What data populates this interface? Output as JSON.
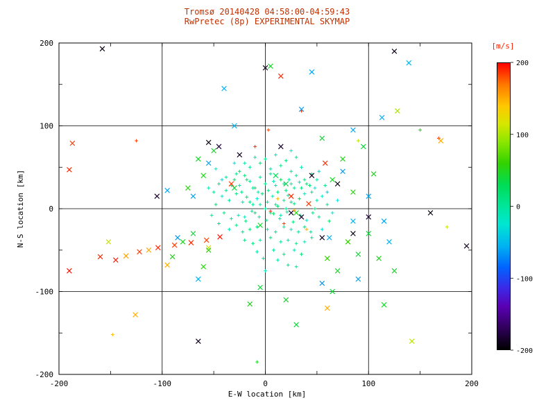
{
  "colors": {
    "title": "#c03000",
    "colorbar_label": "#ff2200",
    "axis": "#000000",
    "background": "#ffffff"
  },
  "chart_data": {
    "type": "scatter",
    "title": "Tromsø 20140428 04:58:00-04:59:43",
    "subtitle": "RwPretec (8p) EXPERIMENTAL SKYMAP",
    "xlabel": "E-W location [km]",
    "ylabel": "N-S location [km]",
    "xlim": [
      -200,
      200
    ],
    "ylim": [
      -200,
      200
    ],
    "x_ticks": [
      -200,
      -100,
      0,
      100,
      200
    ],
    "y_ticks": [
      -200,
      -100,
      0,
      100,
      200
    ],
    "grid_positions": [
      -100,
      0,
      100
    ],
    "grid": "on",
    "colorbar": {
      "label": "[m/s]",
      "ticks": [
        200,
        100,
        0,
        -100,
        -200
      ],
      "min": -200,
      "max": 200,
      "stops": [
        [
          -200,
          "#000000"
        ],
        [
          -170,
          "#30005a"
        ],
        [
          -140,
          "#5a00b4"
        ],
        [
          -115,
          "#3c28e6"
        ],
        [
          -85,
          "#0064ff"
        ],
        [
          -55,
          "#00b4f0"
        ],
        [
          -25,
          "#00e6d2"
        ],
        [
          0,
          "#00e69b"
        ],
        [
          30,
          "#00dc55"
        ],
        [
          60,
          "#32d200"
        ],
        [
          90,
          "#8ce600"
        ],
        [
          115,
          "#d7e600"
        ],
        [
          140,
          "#ffc800"
        ],
        [
          170,
          "#ff7800"
        ],
        [
          200,
          "#ff0000"
        ]
      ]
    },
    "points_format": "[x_km, y_km, velocity_ms, marker] marker: 0=small plus (default), 1=x",
    "points": [
      [
        -45,
        30,
        10
      ],
      [
        -38,
        22,
        5
      ],
      [
        -30,
        35,
        20
      ],
      [
        -25,
        28,
        -10
      ],
      [
        -20,
        40,
        15
      ],
      [
        -15,
        33,
        0
      ],
      [
        -10,
        25,
        25
      ],
      [
        -5,
        38,
        -5
      ],
      [
        0,
        30,
        10
      ],
      [
        5,
        42,
        5
      ],
      [
        10,
        28,
        -15
      ],
      [
        15,
        35,
        30
      ],
      [
        20,
        22,
        10
      ],
      [
        25,
        30,
        -5
      ],
      [
        30,
        40,
        0
      ],
      [
        35,
        25,
        15
      ],
      [
        -42,
        15,
        -20
      ],
      [
        -35,
        10,
        5
      ],
      [
        -28,
        18,
        10
      ],
      [
        -22,
        8,
        -10
      ],
      [
        -18,
        14,
        20
      ],
      [
        -12,
        5,
        0
      ],
      [
        -8,
        12,
        -25
      ],
      [
        -3,
        18,
        15
      ],
      [
        2,
        8,
        5
      ],
      [
        7,
        15,
        -10
      ],
      [
        12,
        3,
        20
      ],
      [
        18,
        10,
        0
      ],
      [
        22,
        16,
        -5
      ],
      [
        28,
        6,
        10
      ],
      [
        33,
        12,
        25
      ],
      [
        38,
        18,
        -15
      ],
      [
        -40,
        -5,
        10
      ],
      [
        -33,
        -12,
        0
      ],
      [
        -26,
        -8,
        -20
      ],
      [
        -19,
        -15,
        15
      ],
      [
        -13,
        -3,
        5
      ],
      [
        -6,
        -10,
        -5
      ],
      [
        1,
        -14,
        10
      ],
      [
        8,
        -6,
        20
      ],
      [
        14,
        -12,
        -10
      ],
      [
        21,
        -4,
        0
      ],
      [
        27,
        -16,
        15
      ],
      [
        34,
        -8,
        5
      ],
      [
        40,
        -14,
        -20
      ],
      [
        46,
        -5,
        10
      ],
      [
        -15,
        50,
        5
      ],
      [
        -5,
        55,
        15
      ],
      [
        5,
        48,
        -5
      ],
      [
        15,
        52,
        10
      ],
      [
        25,
        45,
        0
      ],
      [
        -25,
        45,
        20
      ],
      [
        35,
        50,
        -10
      ],
      [
        45,
        42,
        5
      ],
      [
        0,
        60,
        10
      ],
      [
        10,
        65,
        -15
      ],
      [
        -10,
        62,
        0
      ],
      [
        20,
        58,
        15
      ],
      [
        30,
        62,
        5
      ],
      [
        -20,
        55,
        -5
      ],
      [
        40,
        30,
        20
      ],
      [
        45,
        20,
        0
      ],
      [
        50,
        10,
        -10
      ],
      [
        48,
        0,
        15
      ],
      [
        52,
        -10,
        5
      ],
      [
        55,
        15,
        -20
      ],
      [
        58,
        28,
        10
      ],
      [
        60,
        5,
        0
      ],
      [
        62,
        -15,
        20
      ],
      [
        50,
        35,
        -5
      ],
      [
        -50,
        20,
        5
      ],
      [
        -48,
        5,
        15
      ],
      [
        -52,
        -8,
        0
      ],
      [
        -55,
        25,
        -10
      ],
      [
        -45,
        -18,
        10
      ],
      [
        0,
        0,
        5
      ],
      [
        -5,
        5,
        -5
      ],
      [
        5,
        -5,
        15
      ],
      [
        10,
        5,
        0
      ],
      [
        -10,
        -5,
        20
      ],
      [
        15,
        -8,
        -10
      ],
      [
        -15,
        8,
        10
      ],
      [
        20,
        0,
        5
      ],
      [
        -20,
        -10,
        -15
      ],
      [
        25,
        8,
        0
      ],
      [
        3,
        22,
        10
      ],
      [
        -7,
        20,
        -5
      ],
      [
        12,
        20,
        15
      ],
      [
        -12,
        25,
        5
      ],
      [
        8,
        33,
        -10
      ],
      [
        18,
        30,
        0
      ],
      [
        -18,
        35,
        20
      ],
      [
        23,
        35,
        -5
      ],
      [
        -23,
        20,
        10
      ],
      [
        28,
        25,
        5
      ],
      [
        33,
        32,
        -15
      ],
      [
        -33,
        28,
        0
      ],
      [
        38,
        35,
        10
      ],
      [
        -38,
        38,
        -5
      ],
      [
        43,
        28,
        15
      ],
      [
        -28,
        42,
        5
      ],
      [
        2,
        -25,
        -10
      ],
      [
        -8,
        -22,
        10
      ],
      [
        10,
        -28,
        0
      ],
      [
        -15,
        -25,
        15
      ],
      [
        18,
        -22,
        -5
      ],
      [
        -22,
        -28,
        5
      ],
      [
        25,
        -25,
        -20
      ],
      [
        -28,
        -20,
        10
      ],
      [
        32,
        -28,
        0
      ],
      [
        38,
        -22,
        15
      ],
      [
        -35,
        -25,
        -10
      ],
      [
        44,
        -28,
        5
      ],
      [
        5,
        -35,
        10
      ],
      [
        -5,
        -38,
        -5
      ],
      [
        15,
        -40,
        0
      ],
      [
        -12,
        -42,
        15
      ],
      [
        22,
        -38,
        -10
      ],
      [
        30,
        -42,
        5
      ],
      [
        -20,
        -38,
        10
      ],
      [
        38,
        -40,
        -15
      ],
      [
        45,
        -35,
        0
      ],
      [
        8,
        -50,
        5
      ],
      [
        -8,
        -52,
        -5
      ],
      [
        18,
        -55,
        10
      ],
      [
        28,
        -50,
        -10
      ],
      [
        -2,
        -60,
        0
      ],
      [
        35,
        -55,
        15
      ],
      [
        12,
        -62,
        -5
      ],
      [
        22,
        -68,
        5
      ],
      [
        0,
        -75,
        -10
      ],
      [
        30,
        -70,
        0
      ],
      [
        48,
        25,
        -25
      ],
      [
        55,
        -25,
        -30
      ],
      [
        -42,
        35,
        -35
      ],
      [
        60,
        20,
        -40
      ],
      [
        -30,
        55,
        -30
      ],
      [
        25,
        70,
        -25
      ],
      [
        -48,
        48,
        -20
      ],
      [
        52,
        45,
        -35
      ],
      [
        65,
        -5,
        -25
      ],
      [
        70,
        10,
        -30
      ],
      [
        -30,
        25,
        40,
        1
      ],
      [
        20,
        30,
        35,
        1
      ],
      [
        -5,
        -20,
        45,
        1
      ],
      [
        30,
        -5,
        50,
        1
      ],
      [
        10,
        40,
        30,
        1
      ],
      [
        35,
        -10,
        -185,
        1
      ],
      [
        25,
        -5,
        -190,
        1
      ],
      [
        45,
        40,
        -190,
        1
      ],
      [
        70,
        30,
        -195,
        1
      ],
      [
        15,
        75,
        -185,
        1
      ],
      [
        -25,
        65,
        -190,
        1
      ],
      [
        -55,
        80,
        -195,
        1
      ],
      [
        -45,
        75,
        -185,
        1
      ],
      [
        55,
        -35,
        -190,
        1
      ],
      [
        85,
        -30,
        -195,
        1
      ],
      [
        100,
        -10,
        -185,
        1
      ],
      [
        160,
        -5,
        -195,
        1
      ],
      [
        195,
        -45,
        -190,
        1
      ],
      [
        0,
        170,
        -190,
        1
      ],
      [
        125,
        190,
        -190,
        1
      ],
      [
        -158,
        193,
        -195,
        1
      ],
      [
        -65,
        -160,
        -190,
        1
      ],
      [
        -105,
        15,
        -185,
        1
      ],
      [
        -190,
        -75,
        195,
        1
      ],
      [
        -160,
        -58,
        190,
        1
      ],
      [
        -145,
        -62,
        195,
        1
      ],
      [
        -122,
        -52,
        185,
        1
      ],
      [
        -104,
        -47,
        190,
        1
      ],
      [
        -88,
        -44,
        185,
        1
      ],
      [
        -72,
        -41,
        190,
        1
      ],
      [
        -57,
        -38,
        185,
        1
      ],
      [
        -44,
        -34,
        195,
        1
      ],
      [
        -190,
        47,
        190,
        1
      ],
      [
        25,
        15,
        190,
        1
      ],
      [
        42,
        6,
        185,
        1
      ],
      [
        -10,
        75,
        190,
        0
      ],
      [
        15,
        160,
        190,
        1
      ],
      [
        168,
        85,
        190,
        0
      ],
      [
        -125,
        82,
        185,
        0
      ],
      [
        58,
        55,
        190,
        1
      ],
      [
        -33,
        30,
        185,
        1
      ],
      [
        5,
        -3,
        190,
        0
      ],
      [
        18,
        -18,
        185,
        0
      ],
      [
        35,
        118,
        190,
        0
      ],
      [
        3,
        95,
        185,
        0
      ],
      [
        -187,
        79,
        185,
        1
      ],
      [
        -135,
        -57,
        155,
        1
      ],
      [
        -113,
        -50,
        150,
        1
      ],
      [
        -95,
        -68,
        150,
        1
      ],
      [
        170,
        82,
        150,
        1
      ],
      [
        -148,
        -152,
        145,
        0
      ],
      [
        -126,
        -128,
        150,
        1
      ],
      [
        60,
        -120,
        150,
        1
      ],
      [
        28,
        -2,
        155,
        0
      ],
      [
        40,
        -25,
        150,
        0
      ],
      [
        12,
        12,
        145,
        0
      ],
      [
        -152,
        -40,
        110,
        1
      ],
      [
        142,
        -160,
        105,
        1
      ],
      [
        176,
        -22,
        110,
        0
      ],
      [
        -55,
        -47,
        115,
        1
      ],
      [
        128,
        118,
        100,
        1
      ],
      [
        90,
        82,
        105,
        0
      ],
      [
        -70,
        15,
        -60,
        1
      ],
      [
        85,
        -15,
        -55,
        1
      ],
      [
        -85,
        -35,
        -65,
        1
      ],
      [
        100,
        15,
        -60,
        1
      ],
      [
        62,
        -35,
        -55,
        1
      ],
      [
        -55,
        55,
        -60,
        1
      ],
      [
        120,
        -40,
        -55,
        1
      ],
      [
        -95,
        22,
        -60,
        1
      ],
      [
        75,
        45,
        -65,
        1
      ],
      [
        139,
        176,
        -55,
        1
      ],
      [
        45,
        165,
        -60,
        1
      ],
      [
        -40,
        145,
        -55,
        1
      ],
      [
        90,
        -85,
        -60,
        1
      ],
      [
        -65,
        -85,
        -55,
        1
      ],
      [
        35,
        120,
        -60,
        1
      ],
      [
        -30,
        100,
        -55,
        1
      ],
      [
        115,
        -15,
        -60,
        1
      ],
      [
        55,
        -90,
        -65,
        1
      ],
      [
        113,
        110,
        -55,
        1
      ],
      [
        85,
        95,
        -60,
        1
      ],
      [
        -60,
        40,
        50,
        1
      ],
      [
        -70,
        -30,
        40,
        1
      ],
      [
        80,
        -40,
        60,
        1
      ],
      [
        65,
        35,
        45,
        1
      ],
      [
        -55,
        -50,
        55,
        1
      ],
      [
        90,
        -55,
        40,
        1
      ],
      [
        75,
        60,
        50,
        1
      ],
      [
        -65,
        60,
        45,
        1
      ],
      [
        85,
        20,
        55,
        1
      ],
      [
        100,
        -30,
        40,
        1
      ],
      [
        -80,
        -40,
        50,
        1
      ],
      [
        60,
        -60,
        60,
        1
      ],
      [
        -50,
        70,
        45,
        1
      ],
      [
        105,
        42,
        50,
        1
      ],
      [
        95,
        75,
        40,
        1
      ],
      [
        -75,
        25,
        55,
        1
      ],
      [
        70,
        -75,
        45,
        1
      ],
      [
        -90,
        -58,
        50,
        1
      ],
      [
        55,
        85,
        40,
        1
      ],
      [
        -60,
        -70,
        55,
        1
      ],
      [
        5,
        172,
        45,
        1
      ],
      [
        150,
        95,
        50,
        0
      ],
      [
        -5,
        -95,
        40,
        1
      ],
      [
        20,
        -110,
        45,
        1
      ],
      [
        -15,
        -115,
        50,
        1
      ],
      [
        30,
        -140,
        40,
        1
      ],
      [
        -8,
        -185,
        45,
        0
      ],
      [
        110,
        -60,
        50,
        1
      ],
      [
        125,
        -75,
        45,
        1
      ],
      [
        65,
        -100,
        40,
        1
      ],
      [
        115,
        -116,
        45,
        1
      ]
    ]
  }
}
